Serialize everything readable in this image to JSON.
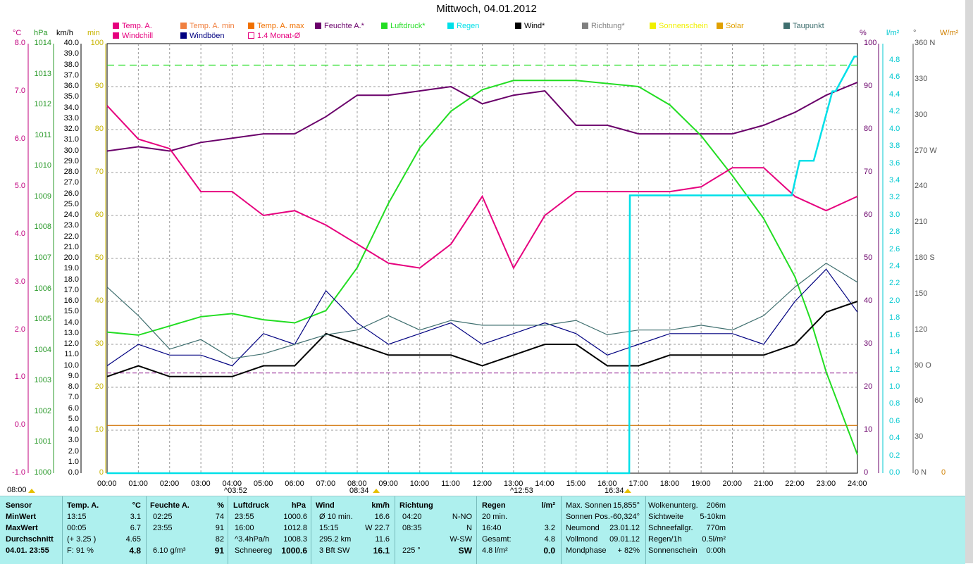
{
  "title": "Mittwoch, 04.01.2012",
  "legend": [
    {
      "label": "Temp. A.",
      "color": "#e6007e"
    },
    {
      "label": "Temp. A. min",
      "color": "#f08040"
    },
    {
      "label": "Temp. A. max",
      "color": "#f07000"
    },
    {
      "label": "Feuchte A.*",
      "color": "#6a006a"
    },
    {
      "label": "Luftdruck*",
      "color": "#22dd22"
    },
    {
      "label": "Regen",
      "color": "#00e0e8"
    },
    {
      "label": "Wind*",
      "color": "#000000"
    },
    {
      "label": "Richtung*",
      "color": "#808080"
    },
    {
      "label": "Sonnenschein",
      "color": "#f0f000"
    },
    {
      "label": "Solar",
      "color": "#e0a000"
    },
    {
      "label": "Taupunkt",
      "color": "#3f6f6f"
    },
    {
      "label": "Windchill",
      "color": "#e6007e"
    },
    {
      "label": "Windböen",
      "color": "#000080"
    },
    {
      "label": "1.4 Monat-Ø",
      "color": "#e6007e",
      "hollow": true
    }
  ],
  "units": {
    "c": "°C",
    "hpa": "hPa",
    "kmh": "km/h",
    "min": "min",
    "pct": "%",
    "lm2": "l/m²",
    "deg": "°",
    "wm2": "W/m²"
  },
  "axes": {
    "celsius": [
      "8.0",
      "7.0",
      "6.0",
      "5.0",
      "4.0",
      "3.0",
      "2.0",
      "1.0",
      "0.0",
      "-1.0"
    ],
    "hpa": [
      "1014",
      "1013",
      "1012",
      "1011",
      "1010",
      "1009",
      "1008",
      "1007",
      "1006",
      "1005",
      "1004",
      "1003",
      "1002",
      "1001",
      "1000"
    ],
    "kmh": [
      "40.0",
      "39.0",
      "38.0",
      "37.0",
      "36.0",
      "35.0",
      "34.0",
      "33.0",
      "32.0",
      "31.0",
      "30.0",
      "29.0",
      "28.0",
      "27.0",
      "26.0",
      "25.0",
      "24.0",
      "23.0",
      "22.0",
      "21.0",
      "20.0",
      "19.0",
      "18.0",
      "17.0",
      "16.0",
      "15.0",
      "14.0",
      "13.0",
      "12.0",
      "11.0",
      "10.0",
      "9.0",
      "8.0",
      "7.0",
      "6.0",
      "5.0",
      "4.0",
      "3.0",
      "2.0",
      "1.0",
      "0.0"
    ],
    "min_inner": [
      "100",
      "90",
      "80",
      "70",
      "60",
      "50",
      "40",
      "30",
      "20",
      "10",
      "0"
    ],
    "pct": [
      "100",
      "90",
      "80",
      "70",
      "60",
      "50",
      "40",
      "30",
      "20",
      "10",
      "0"
    ],
    "lm2": [
      "4.8",
      "4.6",
      "4.4",
      "4.2",
      "4.0",
      "3.8",
      "3.6",
      "3.4",
      "3.2",
      "3.0",
      "2.8",
      "2.6",
      "2.4",
      "2.2",
      "2.0",
      "1.8",
      "1.6",
      "1.4",
      "1.2",
      "1.0",
      "0.8",
      "0.6",
      "0.4",
      "0.2",
      "0.0"
    ],
    "deg": [
      "360 N",
      "330",
      "300",
      "270 W",
      "240",
      "210",
      "180 S",
      "150",
      "120",
      "90  O",
      "60",
      "30",
      "0   N"
    ],
    "wm2": [
      "0"
    ],
    "time": [
      "00:00",
      "01:00",
      "02:00",
      "03:00",
      "04:00",
      "05:00",
      "06:00",
      "07:00",
      "08:00",
      "09:00",
      "10:00",
      "11:00",
      "12:00",
      "13:00",
      "14:00",
      "15:00",
      "16:00",
      "17:00",
      "18:00",
      "19:00",
      "20:00",
      "21:00",
      "22:00",
      "23:00",
      "24:00"
    ]
  },
  "markers": [
    {
      "text": "08:00"
    },
    {
      "text": "^03:52"
    },
    {
      "text": "08:34"
    },
    {
      "text": "^12:53"
    },
    {
      "text": "16:34"
    }
  ],
  "chart_data": {
    "type": "line",
    "title": "Mittwoch, 04.01.2012",
    "x_range": [
      "00:00",
      "24:00"
    ],
    "series": [
      {
        "name": "Feuchte A.*",
        "unit": "%",
        "x": [
          0,
          1,
          2,
          3,
          4,
          5,
          6,
          7,
          8,
          9,
          10,
          11,
          12,
          13,
          14,
          15,
          16,
          17,
          18,
          19,
          20,
          21,
          22,
          23,
          24
        ],
        "values": [
          75,
          76,
          75,
          77,
          78,
          79,
          79,
          83,
          88,
          88,
          89,
          90,
          86,
          88,
          89,
          81,
          81,
          79,
          79,
          79,
          79,
          81,
          84,
          88,
          91
        ]
      },
      {
        "name": "Luftdruck*",
        "unit": "hPa",
        "x": [
          0,
          1,
          2,
          3,
          4,
          5,
          6,
          7,
          8,
          9,
          10,
          11,
          12,
          13,
          14,
          15,
          16,
          17,
          18,
          19,
          20,
          21,
          22,
          22.5,
          23,
          24
        ],
        "values": [
          1004.6,
          1004.5,
          1004.8,
          1005.1,
          1005.2,
          1005.0,
          1004.9,
          1005.3,
          1006.7,
          1008.8,
          1010.6,
          1011.8,
          1012.5,
          1012.8,
          1012.8,
          1012.8,
          1012.7,
          1012.6,
          1012.0,
          1011.0,
          1009.7,
          1008.3,
          1006.4,
          1005.0,
          1003.3,
          1000.6
        ]
      },
      {
        "name": "Temp. A.",
        "unit": "°C",
        "x": [
          0,
          1,
          2,
          3,
          4,
          5,
          6,
          7,
          8,
          9,
          10,
          11,
          12,
          13,
          14,
          15,
          16,
          17,
          18,
          19,
          20,
          21,
          22,
          23,
          24
        ],
        "values": [
          6.7,
          6.0,
          5.8,
          4.9,
          4.9,
          4.4,
          4.5,
          4.2,
          3.8,
          3.4,
          3.3,
          3.8,
          4.8,
          3.3,
          4.4,
          4.9,
          4.9,
          4.9,
          4.9,
          5.0,
          5.4,
          5.4,
          4.8,
          4.5,
          4.8
        ]
      },
      {
        "name": "Windböen",
        "unit": "km/h",
        "x": [
          0,
          1,
          2,
          3,
          4,
          5,
          6,
          7,
          8,
          9,
          10,
          11,
          12,
          13,
          14,
          15,
          16,
          17,
          18,
          19,
          20,
          21,
          22,
          23,
          24
        ],
        "values": [
          10,
          12,
          11,
          11,
          10,
          13,
          12,
          17,
          14,
          12,
          13,
          14,
          12,
          13,
          14,
          13,
          11,
          12,
          13,
          13,
          13,
          12,
          16,
          19,
          15
        ]
      },
      {
        "name": "Wind*",
        "unit": "km/h",
        "x": [
          0,
          1,
          2,
          3,
          4,
          5,
          6,
          7,
          8,
          9,
          10,
          11,
          12,
          13,
          14,
          15,
          16,
          17,
          18,
          19,
          20,
          21,
          22,
          23,
          24
        ],
        "values": [
          9,
          10,
          9,
          9,
          9,
          10,
          10,
          13,
          12,
          11,
          11,
          11,
          10,
          11,
          12,
          12,
          10,
          10,
          11,
          11,
          11,
          11,
          12,
          15,
          16
        ]
      },
      {
        "name": "Taupunkt",
        "unit": "°C",
        "x": [
          0,
          1,
          2,
          3,
          4,
          5,
          6,
          7,
          8,
          9,
          10,
          11,
          12,
          13,
          14,
          15,
          16,
          17,
          18,
          19,
          20,
          21,
          22,
          23,
          24
        ],
        "values": [
          2.9,
          2.3,
          1.6,
          1.8,
          1.4,
          1.5,
          1.7,
          1.9,
          2.0,
          2.3,
          2.0,
          2.2,
          2.1,
          2.1,
          2.1,
          2.2,
          1.9,
          2.0,
          2.0,
          2.1,
          2.0,
          2.3,
          2.9,
          3.4,
          3.0
        ]
      },
      {
        "name": "Regen",
        "unit": "l/m²",
        "x": [
          0,
          16.7,
          16.72,
          21.9,
          22.15,
          22.4,
          22.6,
          23.2,
          23.3,
          23.9,
          23.95,
          24
        ],
        "values": [
          0,
          0,
          3.2,
          3.2,
          3.6,
          3.6,
          3.6,
          4.4,
          4.4,
          4.8,
          4.8,
          4.8
        ]
      }
    ],
    "reference_lines": [
      {
        "name": "1.4 Monat-Ø",
        "unit": "°C",
        "value": 1.1
      },
      {
        "name": "Luftdruck max",
        "unit": "hPa",
        "value": 1013.3
      },
      {
        "name": "Temp. A. min",
        "unit": "°C",
        "value": 0.0
      }
    ]
  },
  "table": {
    "header": [
      "Sensor",
      "Temp. A.",
      "°C",
      "Feuchte A.",
      "%",
      "Luftdruck",
      "hPa",
      "Wind",
      "km/h",
      "Richtung",
      "Regen",
      "l/m²"
    ],
    "rows": [
      [
        "MinWert",
        "13:15",
        "3.1",
        "02:25",
        "74",
        "23:55",
        "1000.6",
        "Ø 10 min.",
        "16.6",
        "04:20",
        "N-NO",
        "20 min."
      ],
      [
        "MaxWert",
        "00:05",
        "6.7",
        "23:55",
        "91",
        "16:00",
        "1012.8",
        "15:15",
        "W 22.7",
        "08:35",
        "N",
        "16:40",
        "3.2"
      ],
      [
        "Durchschnitt",
        "(+ 3.25 )",
        "4.65",
        "",
        "82",
        "^3.4hPa/h",
        "1008.3",
        "295.2 km",
        "11.6",
        "",
        "W-SW",
        "Gesamt:",
        "4.8"
      ],
      [
        "04.01. 23:55",
        "F: 91 %",
        "4.8",
        "6.10 g/m³",
        "91",
        "Schneereg",
        "1000.6",
        "3 Bft SW",
        "16.1",
        "225 °",
        "SW",
        "4.8 l/m²",
        "0.0"
      ]
    ],
    "astro": [
      [
        "Max. Sonnen",
        "15,855°",
        "Wolkenunterg.",
        "206m"
      ],
      [
        "Sonnen Pos.",
        "-60,324°",
        "Sichtweite",
        "5-10km"
      ],
      [
        "Neumond",
        "23.01.12",
        "Schneefallgr.",
        "770m"
      ],
      [
        "Vollmond",
        "09.01.12",
        "Regen/1h",
        "0.5l/m²"
      ],
      [
        "Mondphase",
        "+ 82%",
        "Sonnenschein",
        "0:00h"
      ]
    ]
  }
}
